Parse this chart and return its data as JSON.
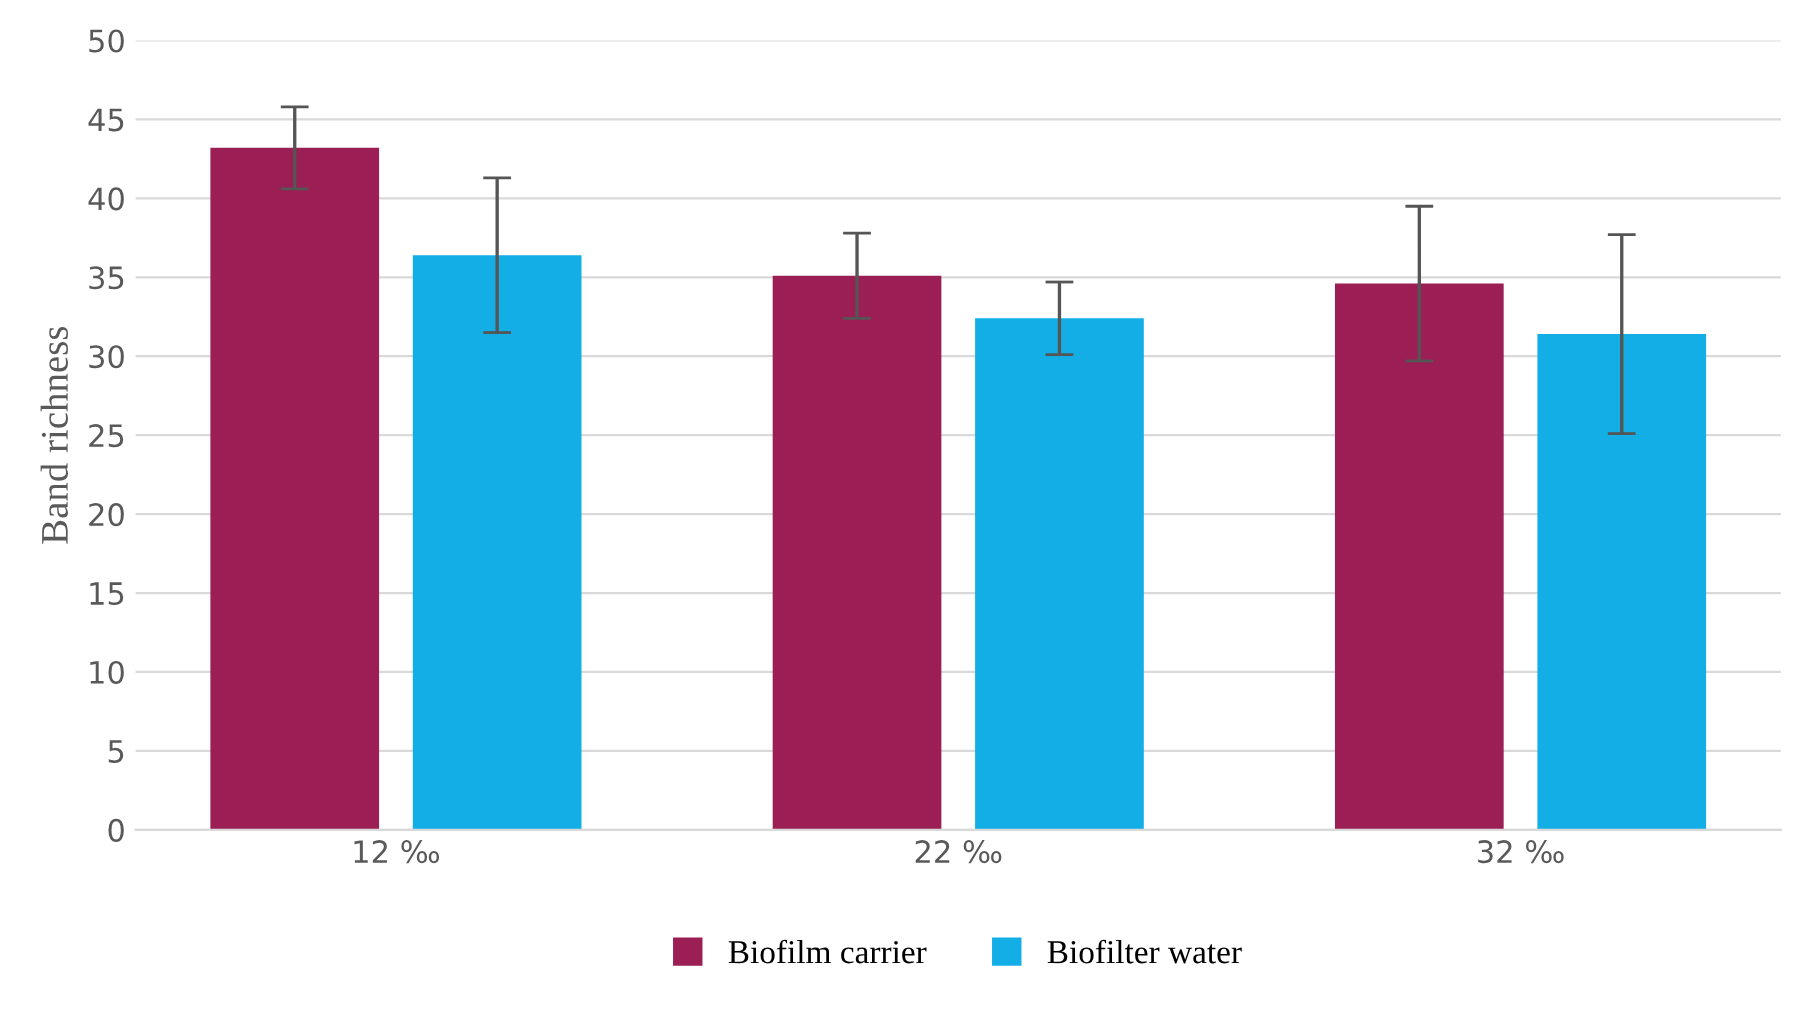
{
  "chart_data": {
    "type": "bar",
    "ylabel": "Band richness",
    "categories": [
      "12 ‰",
      "22 ‰",
      "32 ‰"
    ],
    "series": [
      {
        "name": "Biofilm carrier",
        "color": "#9b1f55",
        "values": [
          43.2,
          35.1,
          34.6
        ],
        "errors": [
          2.6,
          2.7,
          4.9
        ]
      },
      {
        "name": "Biofilter water",
        "color": "#13aee6",
        "values": [
          36.4,
          32.4,
          31.4
        ],
        "errors": [
          4.9,
          2.3,
          6.3
        ]
      }
    ],
    "ylim": [
      0,
      50
    ],
    "yticks": [
      0,
      5,
      10,
      15,
      20,
      25,
      30,
      35,
      40,
      45,
      50
    ],
    "grid": "y",
    "legend": "bottom"
  }
}
